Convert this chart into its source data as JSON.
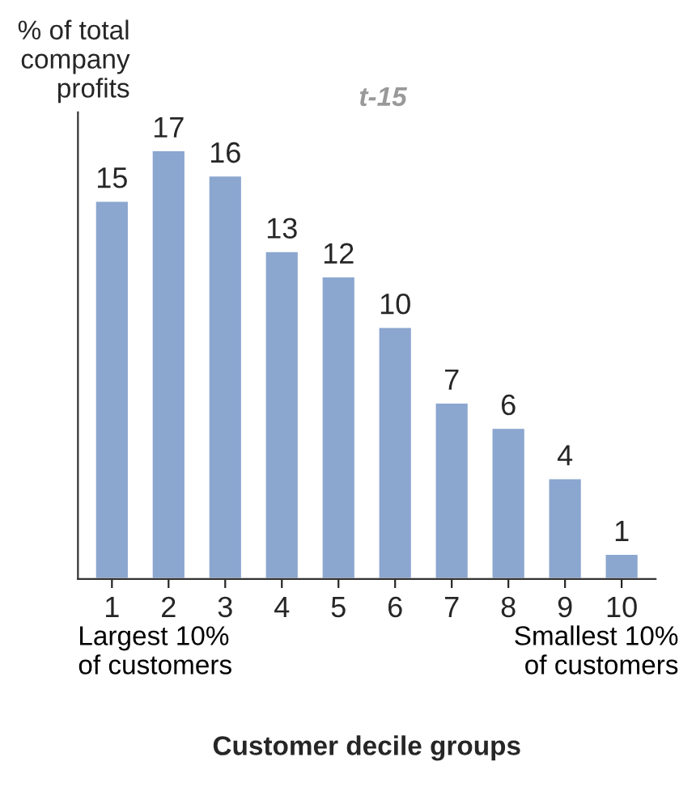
{
  "chart_data": {
    "type": "bar",
    "categories": [
      "1",
      "2",
      "3",
      "4",
      "5",
      "6",
      "7",
      "8",
      "9",
      "10"
    ],
    "values": [
      15,
      17,
      16,
      13,
      12,
      10,
      7,
      6,
      4,
      1
    ],
    "color": "#8ba6cf",
    "ylim": [
      0,
      18.5
    ],
    "ylabel": "% of total\ncompany\nprofits",
    "xlabel": "Customer decile groups",
    "annotations": [
      "t-15",
      "Largest 10%\nof customers",
      "Smallest 10%\nof customers"
    ],
    "data_labels": true,
    "tick_labels": "x",
    "grid": false,
    "legend": false
  }
}
